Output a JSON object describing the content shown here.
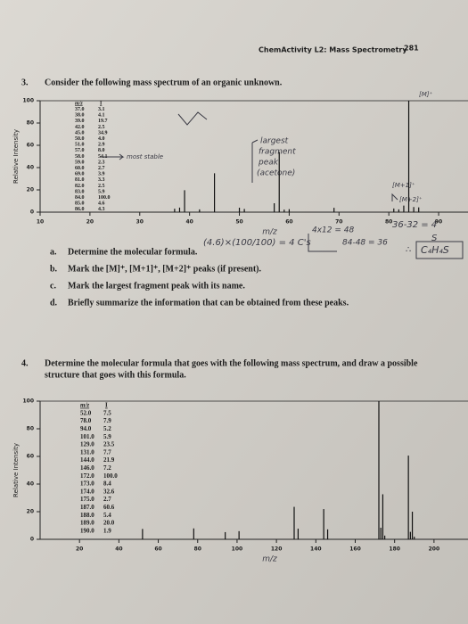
{
  "header": {
    "title": "ChemActivity L2: Mass Spectrometry",
    "page": "281"
  },
  "q3": {
    "number": "3.",
    "text": "Consider the following mass spectrum of an organic unknown.",
    "spectrum": {
      "y_axis_label": "Relative Intensity",
      "x_axis_label": "m/z",
      "table_header": [
        "m/z",
        "I"
      ],
      "rows": [
        [
          "37.0",
          "3.1"
        ],
        [
          "38.0",
          "4.1"
        ],
        [
          "39.0",
          "19.7"
        ],
        [
          "42.0",
          "2.5"
        ],
        [
          "45.0",
          "34.9"
        ],
        [
          "50.0",
          "4.0"
        ],
        [
          "51.0",
          "2.9"
        ],
        [
          "57.0",
          "8.0"
        ],
        [
          "58.0",
          "54.1"
        ],
        [
          "59.0",
          "2.3"
        ],
        [
          "60.0",
          "2.7"
        ],
        [
          "69.0",
          "3.9"
        ],
        [
          "81.0",
          "3.3"
        ],
        [
          "82.0",
          "2.5"
        ],
        [
          "83.0",
          "5.9"
        ],
        [
          "84.0",
          "100.0"
        ],
        [
          "85.0",
          "4.6"
        ],
        [
          "86.0",
          "4.3"
        ]
      ],
      "xlim": [
        10,
        95
      ],
      "ylim": [
        0,
        100
      ],
      "xticks": [
        10,
        20,
        30,
        40,
        50,
        60,
        70,
        80,
        90
      ],
      "yticks": [
        0,
        20,
        40,
        60,
        80,
        100
      ]
    },
    "items": [
      {
        "label": "a.",
        "text": "Determine the molecular formula."
      },
      {
        "label": "b.",
        "text": "Mark the [M]⁺, [M+1]⁺, [M+2]⁺ peaks (if present)."
      },
      {
        "label": "c.",
        "text": "Mark the largest fragment peak with its name."
      },
      {
        "label": "d.",
        "text": "Briefly summarize the information that can be obtained from these peaks."
      }
    ]
  },
  "handwriting": {
    "m_label": "[M]⁺",
    "m1_label": "[M+1]⁺",
    "m2_label": "[M+2]⁺",
    "fragment": [
      "largest",
      "fragment",
      "peak",
      "(acetone)"
    ],
    "most_stable": "most stable",
    "carbons_calc": "(4.6)×(100/100) = 4 C's",
    "mass_c": "4x12 = 48",
    "mass_rest": "84-48 = 36",
    "mass_h": "36-32 = 4",
    "sulfur": "S",
    "formula": "C₄H₄S"
  },
  "q4": {
    "number": "4.",
    "text": [
      "Determine the molecular formula that goes with the following mass spectrum, and draw a possible",
      "structure that goes with this formula."
    ],
    "spectrum": {
      "y_axis_label": "Relative Intensity",
      "x_axis_label": "m/z",
      "table_header": [
        "m/z",
        "I"
      ],
      "rows": [
        [
          "52.0",
          "7.5"
        ],
        [
          "78.0",
          "7.9"
        ],
        [
          "94.0",
          "5.2"
        ],
        [
          "101.0",
          "5.9"
        ],
        [
          "129.0",
          "23.5"
        ],
        [
          "131.0",
          "7.7"
        ],
        [
          "144.0",
          "21.9"
        ],
        [
          "146.0",
          "7.2"
        ],
        [
          "172.0",
          "100.0"
        ],
        [
          "173.0",
          "8.4"
        ],
        [
          "174.0",
          "32.6"
        ],
        [
          "175.0",
          "2.7"
        ],
        [
          "187.0",
          "60.6"
        ],
        [
          "188.0",
          "5.4"
        ],
        [
          "189.0",
          "20.0"
        ],
        [
          "190.0",
          "1.9"
        ]
      ],
      "xlim": [
        0,
        215
      ],
      "ylim": [
        0,
        100
      ],
      "xticks": [
        20,
        40,
        60,
        80,
        100,
        120,
        140,
        160,
        180,
        200
      ],
      "yticks": [
        0,
        20,
        40,
        60,
        80,
        100
      ]
    }
  }
}
